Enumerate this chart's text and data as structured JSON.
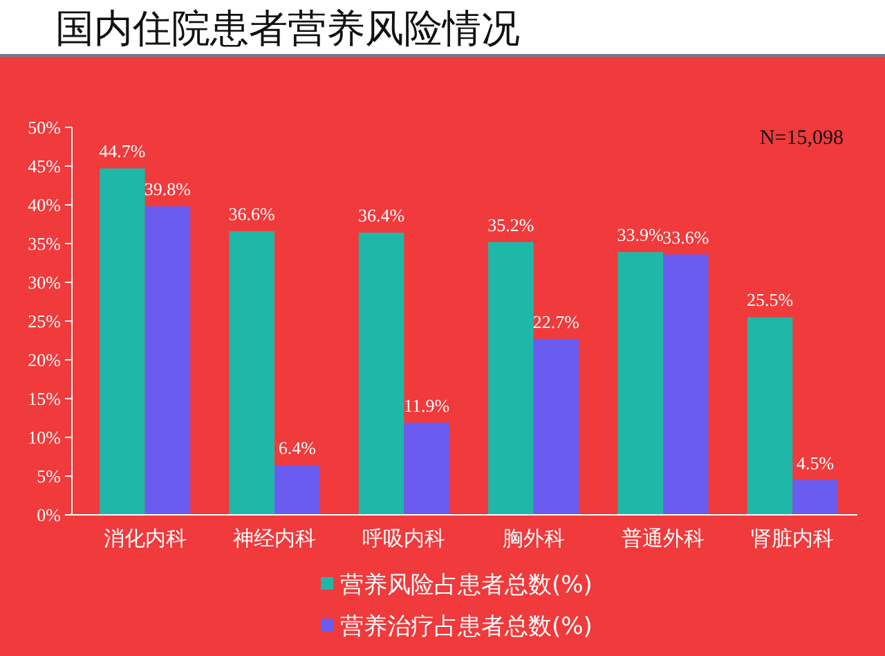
{
  "chart_data": {
    "type": "bar",
    "title": "国内住院患者营养风险情况",
    "categories": [
      "消化内科",
      "神经内科",
      "呼吸内科",
      "胸外科",
      "普通外科",
      "肾脏内科"
    ],
    "series": [
      {
        "name": "营养风险占患者总数(%)",
        "color": "#1fb8a8",
        "values": [
          44.7,
          36.6,
          36.4,
          35.2,
          33.9,
          25.5
        ],
        "value_labels": [
          "44.7%",
          "36.6%",
          "36.4%",
          "35.2%",
          "33.9%",
          "25.5%"
        ]
      },
      {
        "name": "营养治疗占患者总数(%)",
        "color": "#6a5cf0",
        "values": [
          39.8,
          6.4,
          11.9,
          22.7,
          33.6,
          4.5
        ],
        "value_labels": [
          "39.8%",
          "6.4%",
          "11.9%",
          "22.7%",
          "33.6%",
          "4.5%"
        ]
      }
    ],
    "ylim": [
      0,
      50
    ],
    "yticks": [
      {
        "value": 0,
        "label": "0%"
      },
      {
        "value": 5,
        "label": "5%"
      },
      {
        "value": 10,
        "label": "10%"
      },
      {
        "value": 15,
        "label": "15%"
      },
      {
        "value": 20,
        "label": "20%"
      },
      {
        "value": 25,
        "label": "25%"
      },
      {
        "value": 30,
        "label": "30%"
      },
      {
        "value": 35,
        "label": "35%"
      },
      {
        "value": 40,
        "label": "40%"
      },
      {
        "value": 45,
        "label": "45%"
      },
      {
        "value": 50,
        "label": "50%"
      }
    ],
    "annotations": [
      "N=15,098"
    ],
    "legend": "bottom",
    "grid": false
  }
}
